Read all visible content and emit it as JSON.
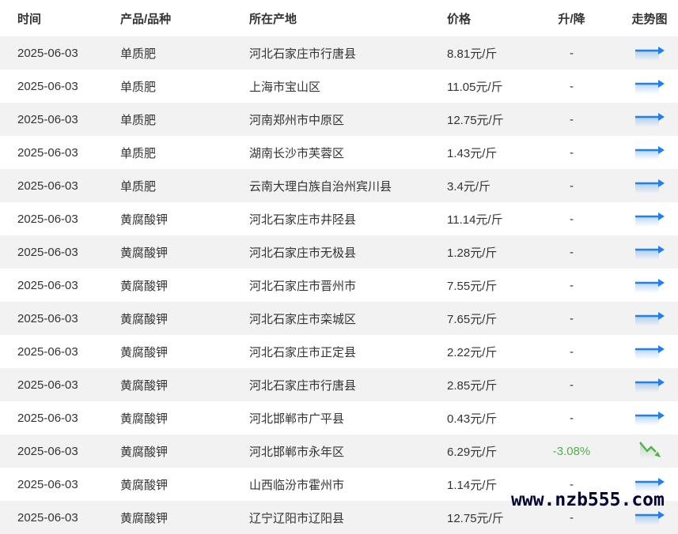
{
  "watermark": "www.nzb555.com",
  "table": {
    "columns": [
      "时间",
      "产品/品种",
      "所在产地",
      "价格",
      "升/降",
      "走势图"
    ],
    "rows": [
      {
        "date": "2025-06-03",
        "product": "单质肥",
        "location": "河北石家庄市行唐县",
        "price": "8.81元/斤",
        "change": "-",
        "trend": "flat"
      },
      {
        "date": "2025-06-03",
        "product": "单质肥",
        "location": "上海市宝山区",
        "price": "11.05元/斤",
        "change": "-",
        "trend": "flat"
      },
      {
        "date": "2025-06-03",
        "product": "单质肥",
        "location": "河南郑州市中原区",
        "price": "12.75元/斤",
        "change": "-",
        "trend": "flat"
      },
      {
        "date": "2025-06-03",
        "product": "单质肥",
        "location": "湖南长沙市芙蓉区",
        "price": "1.43元/斤",
        "change": "-",
        "trend": "flat"
      },
      {
        "date": "2025-06-03",
        "product": "单质肥",
        "location": "云南大理白族自治州宾川县",
        "price": "3.4元/斤",
        "change": "-",
        "trend": "flat"
      },
      {
        "date": "2025-06-03",
        "product": "黄腐酸钾",
        "location": "河北石家庄市井陉县",
        "price": "11.14元/斤",
        "change": "-",
        "trend": "flat"
      },
      {
        "date": "2025-06-03",
        "product": "黄腐酸钾",
        "location": "河北石家庄市无极县",
        "price": "1.28元/斤",
        "change": "-",
        "trend": "flat"
      },
      {
        "date": "2025-06-03",
        "product": "黄腐酸钾",
        "location": "河北石家庄市晋州市",
        "price": "7.55元/斤",
        "change": "-",
        "trend": "flat"
      },
      {
        "date": "2025-06-03",
        "product": "黄腐酸钾",
        "location": "河北石家庄市栾城区",
        "price": "7.65元/斤",
        "change": "-",
        "trend": "flat"
      },
      {
        "date": "2025-06-03",
        "product": "黄腐酸钾",
        "location": "河北石家庄市正定县",
        "price": "2.22元/斤",
        "change": "-",
        "trend": "flat"
      },
      {
        "date": "2025-06-03",
        "product": "黄腐酸钾",
        "location": "河北石家庄市行唐县",
        "price": "2.85元/斤",
        "change": "-",
        "trend": "flat"
      },
      {
        "date": "2025-06-03",
        "product": "黄腐酸钾",
        "location": "河北邯郸市广平县",
        "price": "0.43元/斤",
        "change": "-",
        "trend": "flat"
      },
      {
        "date": "2025-06-03",
        "product": "黄腐酸钾",
        "location": "河北邯郸市永年区",
        "price": "6.29元/斤",
        "change": "-3.08%",
        "trend": "down"
      },
      {
        "date": "2025-06-03",
        "product": "黄腐酸钾",
        "location": "山西临汾市霍州市",
        "price": "1.14元/斤",
        "change": "-",
        "trend": "flat"
      },
      {
        "date": "2025-06-03",
        "product": "黄腐酸钾",
        "location": "辽宁辽阳市辽阳县",
        "price": "12.75元/斤",
        "change": "-",
        "trend": "flat"
      }
    ]
  },
  "icons": {
    "flat_trend": "right-arrow-sparkline-icon",
    "down_trend": "down-zigzag-arrow-icon"
  },
  "colors": {
    "accent_blue": "#2080f0",
    "change_green": "#4db34d",
    "row_alt_bg": "#f2f2f2",
    "text": "#333333",
    "watermark_text": "#000033"
  }
}
